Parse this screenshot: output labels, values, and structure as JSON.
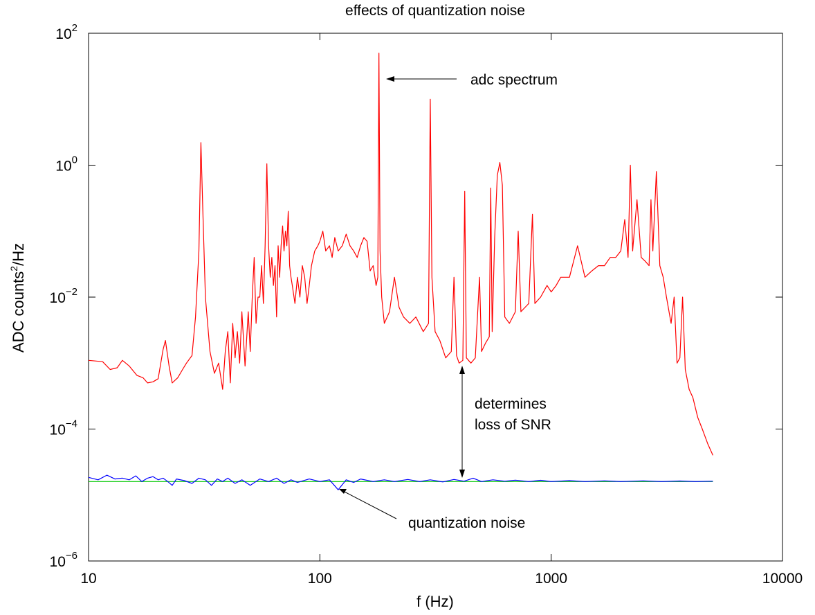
{
  "chart_data": {
    "type": "line",
    "title": "effects of quantization noise",
    "xlabel": "f (Hz)",
    "ylabel_main": "ADC counts",
    "ylabel_sup": "2",
    "ylabel_tail": "/Hz",
    "x_scale": "log",
    "y_scale": "log",
    "xlim": [
      10,
      10000
    ],
    "ylim": [
      1e-06,
      100
    ],
    "grid": false,
    "x_ticks": [
      {
        "value": 10,
        "label": "10"
      },
      {
        "value": 100,
        "label": "100"
      },
      {
        "value": 1000,
        "label": "1000"
      },
      {
        "value": 10000,
        "label": "10000"
      }
    ],
    "y_ticks": [
      {
        "value": 1e-06,
        "base": "10",
        "exp": "−6"
      },
      {
        "value": 0.0001,
        "base": "10",
        "exp": "−4"
      },
      {
        "value": 0.01,
        "base": "10",
        "exp": "−2"
      },
      {
        "value": 1,
        "base": "10",
        "exp": "0"
      },
      {
        "value": 100,
        "base": "10",
        "exp": "2"
      }
    ],
    "series": [
      {
        "key": "adc",
        "color": "#ff0000",
        "points": [
          [
            10.0,
            0.0011
          ],
          [
            11.5,
            0.00105
          ],
          [
            12.4,
            0.0008
          ],
          [
            13.3,
            0.00085
          ],
          [
            14.0,
            0.0011
          ],
          [
            15.0,
            0.0009
          ],
          [
            16.2,
            0.00065
          ],
          [
            17.2,
            0.0006
          ],
          [
            18.0,
            0.0005
          ],
          [
            19.0,
            0.00052
          ],
          [
            20.0,
            0.00058
          ],
          [
            21.0,
            0.0016
          ],
          [
            21.5,
            0.0022
          ],
          [
            22.3,
            0.0009
          ],
          [
            23.0,
            0.0005
          ],
          [
            24.3,
            0.0006
          ],
          [
            25.5,
            0.0008
          ],
          [
            26.5,
            0.001
          ],
          [
            28.0,
            0.0013
          ],
          [
            29.0,
            0.005
          ],
          [
            30.0,
            0.05
          ],
          [
            30.6,
            2.2
          ],
          [
            31.2,
            0.2
          ],
          [
            32.0,
            0.01
          ],
          [
            33.5,
            0.0015
          ],
          [
            35.0,
            0.0007
          ],
          [
            36.5,
            0.001
          ],
          [
            38.0,
            0.0004
          ],
          [
            39.0,
            0.0015
          ],
          [
            40.0,
            0.003
          ],
          [
            41.0,
            0.0005
          ],
          [
            42.0,
            0.004
          ],
          [
            43.0,
            0.0012
          ],
          [
            44.0,
            0.003
          ],
          [
            45.0,
            0.001
          ],
          [
            46.0,
            0.006
          ],
          [
            47.5,
            0.0009
          ],
          [
            49.0,
            0.006
          ],
          [
            50.0,
            0.0015
          ],
          [
            51.0,
            0.01
          ],
          [
            52.0,
            0.04
          ],
          [
            53.0,
            0.004
          ],
          [
            54.0,
            0.01
          ],
          [
            55.0,
            0.01
          ],
          [
            56.0,
            0.03
          ],
          [
            57.0,
            0.008
          ],
          [
            58.0,
            0.06
          ],
          [
            59.0,
            1.05
          ],
          [
            60.0,
            0.06
          ],
          [
            61.0,
            0.02
          ],
          [
            62.0,
            0.04
          ],
          [
            63.0,
            0.015
          ],
          [
            64.0,
            0.03
          ],
          [
            65.0,
            0.005
          ],
          [
            66.0,
            0.06
          ],
          [
            67.0,
            0.02
          ],
          [
            68.0,
            0.06
          ],
          [
            69.0,
            0.12
          ],
          [
            70.0,
            0.05
          ],
          [
            71.0,
            0.1
          ],
          [
            72.0,
            0.06
          ],
          [
            73.0,
            0.2
          ],
          [
            74.0,
            0.03
          ],
          [
            75.0,
            0.02
          ],
          [
            76.0,
            0.015
          ],
          [
            78.0,
            0.008
          ],
          [
            80.0,
            0.02
          ],
          [
            82.0,
            0.01
          ],
          [
            84.0,
            0.03
          ],
          [
            86.0,
            0.02
          ],
          [
            88.0,
            0.008
          ],
          [
            90.0,
            0.015
          ],
          [
            92.0,
            0.03
          ],
          [
            95.0,
            0.05
          ],
          [
            98.0,
            0.06
          ],
          [
            100.0,
            0.07
          ],
          [
            103.0,
            0.1
          ],
          [
            106.0,
            0.05
          ],
          [
            110.0,
            0.06
          ],
          [
            113.0,
            0.04
          ],
          [
            116.0,
            0.08
          ],
          [
            120.0,
            0.05
          ],
          [
            125.0,
            0.06
          ],
          [
            130.0,
            0.09
          ],
          [
            135.0,
            0.06
          ],
          [
            140.0,
            0.05
          ],
          [
            145.0,
            0.04
          ],
          [
            150.0,
            0.06
          ],
          [
            155.0,
            0.08
          ],
          [
            160.0,
            0.07
          ],
          [
            165.0,
            0.025
          ],
          [
            170.0,
            0.03
          ],
          [
            175.0,
            0.015
          ],
          [
            178.0,
            0.02
          ],
          [
            180.0,
            50.0
          ],
          [
            182.0,
            0.05
          ],
          [
            185.0,
            0.01
          ],
          [
            190.0,
            0.004
          ],
          [
            200.0,
            0.006
          ],
          [
            210.0,
            0.02
          ],
          [
            220.0,
            0.007
          ],
          [
            230.0,
            0.005
          ],
          [
            245.0,
            0.004
          ],
          [
            260.0,
            0.005
          ],
          [
            280.0,
            0.003
          ],
          [
            295.0,
            0.004
          ],
          [
            300.0,
            10.0
          ],
          [
            305.0,
            0.02
          ],
          [
            315.0,
            0.003
          ],
          [
            330.0,
            0.0022
          ],
          [
            350.0,
            0.0012
          ],
          [
            370.0,
            0.0015
          ],
          [
            380.0,
            0.02
          ],
          [
            390.0,
            0.0013
          ],
          [
            400.0,
            0.001
          ],
          [
            415.0,
            0.0011
          ],
          [
            423.0,
            0.4
          ],
          [
            430.0,
            0.0012
          ],
          [
            450.0,
            0.001
          ],
          [
            470.0,
            0.0012
          ],
          [
            490.0,
            0.02
          ],
          [
            500.0,
            0.0015
          ],
          [
            520.0,
            0.002
          ],
          [
            540.0,
            0.0025
          ],
          [
            548.0,
            0.45
          ],
          [
            556.0,
            0.003
          ],
          [
            570.0,
            0.08
          ],
          [
            585.0,
            0.7
          ],
          [
            600.0,
            1.1
          ],
          [
            615.0,
            0.5
          ],
          [
            630.0,
            0.005
          ],
          [
            660.0,
            0.004
          ],
          [
            700.0,
            0.006
          ],
          [
            720.0,
            0.1
          ],
          [
            740.0,
            0.006
          ],
          [
            800.0,
            0.008
          ],
          [
            830.0,
            0.18
          ],
          [
            850.0,
            0.008
          ],
          [
            900.0,
            0.01
          ],
          [
            960.0,
            0.015
          ],
          [
            1000.0,
            0.012
          ],
          [
            1050.0,
            0.015
          ],
          [
            1100.0,
            0.02
          ],
          [
            1200.0,
            0.02
          ],
          [
            1300.0,
            0.06
          ],
          [
            1400.0,
            0.02
          ],
          [
            1500.0,
            0.025
          ],
          [
            1600.0,
            0.03
          ],
          [
            1700.0,
            0.03
          ],
          [
            1800.0,
            0.04
          ],
          [
            1900.0,
            0.04
          ],
          [
            2000.0,
            0.05
          ],
          [
            2080.0,
            0.15
          ],
          [
            2150.0,
            0.04
          ],
          [
            2200.0,
            1.0
          ],
          [
            2250.0,
            0.05
          ],
          [
            2350.0,
            0.3
          ],
          [
            2450.0,
            0.04
          ],
          [
            2550.0,
            0.035
          ],
          [
            2650.0,
            0.03
          ],
          [
            2700.0,
            0.3
          ],
          [
            2750.0,
            0.05
          ],
          [
            2850.0,
            0.8
          ],
          [
            2950.0,
            0.03
          ],
          [
            3050.0,
            0.02
          ],
          [
            3150.0,
            0.01
          ],
          [
            3300.0,
            0.004
          ],
          [
            3400.0,
            0.01
          ],
          [
            3500.0,
            0.001
          ],
          [
            3600.0,
            0.0012
          ],
          [
            3700.0,
            0.01
          ],
          [
            3800.0,
            0.0008
          ],
          [
            3950.0,
            0.0004
          ],
          [
            4100.0,
            0.0003
          ],
          [
            4300.0,
            0.00015
          ],
          [
            4500.0,
            0.0001
          ],
          [
            4750.0,
            6e-05
          ],
          [
            5000.0,
            4e-05
          ]
        ]
      },
      {
        "key": "noise_blue",
        "color": "#0000ff",
        "points": [
          [
            10,
            1.85e-05
          ],
          [
            11,
            1.7e-05
          ],
          [
            12,
            2e-05
          ],
          [
            13,
            1.75e-05
          ],
          [
            14,
            1.8e-05
          ],
          [
            15,
            1.7e-05
          ],
          [
            16,
            1.95e-05
          ],
          [
            17,
            1.6e-05
          ],
          [
            18,
            1.8e-05
          ],
          [
            19,
            1.9e-05
          ],
          [
            20,
            1.7e-05
          ],
          [
            21,
            1.8e-05
          ],
          [
            22,
            1.6e-05
          ],
          [
            23,
            1.4e-05
          ],
          [
            24,
            1.75e-05
          ],
          [
            26,
            1.65e-05
          ],
          [
            28,
            1.5e-05
          ],
          [
            30,
            1.8e-05
          ],
          [
            32,
            1.7e-05
          ],
          [
            34,
            1.4e-05
          ],
          [
            36,
            1.75e-05
          ],
          [
            38,
            1.6e-05
          ],
          [
            40,
            1.8e-05
          ],
          [
            43,
            1.5e-05
          ],
          [
            46,
            1.7e-05
          ],
          [
            50,
            1.4e-05
          ],
          [
            55,
            1.75e-05
          ],
          [
            60,
            1.6e-05
          ],
          [
            65,
            1.8e-05
          ],
          [
            70,
            1.5e-05
          ],
          [
            75,
            1.7e-05
          ],
          [
            80,
            1.55e-05
          ],
          [
            90,
            1.75e-05
          ],
          [
            100,
            1.6e-05
          ],
          [
            110,
            1.7e-05
          ],
          [
            120,
            1.2e-05
          ],
          [
            130,
            1.7e-05
          ],
          [
            140,
            1.55e-05
          ],
          [
            150,
            1.75e-05
          ],
          [
            170,
            1.6e-05
          ],
          [
            190,
            1.7e-05
          ],
          [
            210,
            1.6e-05
          ],
          [
            240,
            1.72e-05
          ],
          [
            270,
            1.6e-05
          ],
          [
            300,
            1.7e-05
          ],
          [
            340,
            1.58e-05
          ],
          [
            380,
            1.72e-05
          ],
          [
            420,
            1.62e-05
          ],
          [
            460,
            1.8e-05
          ],
          [
            500,
            1.6e-05
          ],
          [
            560,
            1.7e-05
          ],
          [
            630,
            1.62e-05
          ],
          [
            700,
            1.68e-05
          ],
          [
            800,
            1.6e-05
          ],
          [
            900,
            1.67e-05
          ],
          [
            1000,
            1.6e-05
          ],
          [
            1200,
            1.65e-05
          ],
          [
            1400,
            1.6e-05
          ],
          [
            1700,
            1.64e-05
          ],
          [
            2000,
            1.6e-05
          ],
          [
            2500,
            1.64e-05
          ],
          [
            3000,
            1.6e-05
          ],
          [
            3600,
            1.63e-05
          ],
          [
            4200,
            1.6e-05
          ],
          [
            5000,
            1.62e-05
          ]
        ]
      },
      {
        "key": "noise_green",
        "color": "#00c800",
        "points": [
          [
            10,
            1.6e-05
          ],
          [
            5000,
            1.6e-05
          ]
        ]
      }
    ],
    "annotations": [
      {
        "key": "adc_spectrum",
        "lines": [
          "adc spectrum"
        ]
      },
      {
        "key": "snr",
        "lines": [
          "determines",
          "loss of SNR"
        ]
      },
      {
        "key": "qnoise",
        "lines": [
          "quantization noise"
        ]
      }
    ]
  }
}
